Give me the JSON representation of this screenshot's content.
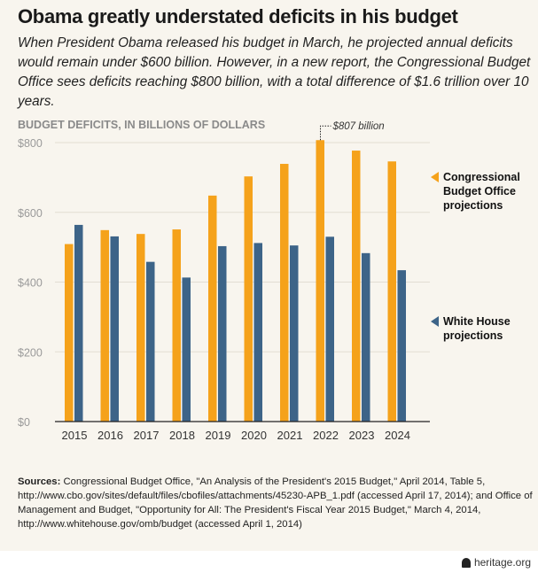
{
  "title": "Obama greatly understated deficits in his budget",
  "subtitle": "When President Obama released his budget in March, he projected annual deficits would remain under $600 billion. However, in a new report, the Congressional Budget Office sees deficits reaching $800 billion, with a total difference of $1.6 trillion over 10 years.",
  "chart_data": {
    "type": "bar",
    "title": "BUDGET DEFICITS, IN BILLIONS OF DOLLARS",
    "categories": [
      "2015",
      "2016",
      "2017",
      "2018",
      "2019",
      "2020",
      "2021",
      "2022",
      "2023",
      "2024"
    ],
    "series": [
      {
        "name": "Congressional Budget Office projections",
        "color": "#f5a21b",
        "values": [
          509,
          549,
          538,
          551,
          648,
          703,
          739,
          807,
          777,
          746
        ]
      },
      {
        "name": "White House projections",
        "color": "#3d6488",
        "values": [
          564,
          531,
          458,
          413,
          503,
          512,
          505,
          530,
          483,
          434
        ]
      }
    ],
    "ylim": [
      0,
      800
    ],
    "yticks": [
      0,
      200,
      400,
      600,
      800
    ],
    "ytick_labels": [
      "$0",
      "$200",
      "$400",
      "$600",
      "$800"
    ],
    "grid": true,
    "legend": "right",
    "annotation": "$807 billion"
  },
  "sources_label": "Sources:",
  "sources_text": " Congressional Budget Office, \"An Analysis of the President's 2015 Budget,\" April 2014, Table 5, http://www.cbo.gov/sites/default/files/cbofiles/attachments/45230-APB_1.pdf (accessed April 17, 2014); and Office of Management and Budget, \"Opportunity for All: The President's Fiscal Year 2015 Budget,\" March 4, 2014, http://www.whitehouse.gov/omb/budget (accessed April 1, 2014)",
  "footer": {
    "site": "heritage.org",
    "icon": "liberty-bell-icon"
  }
}
